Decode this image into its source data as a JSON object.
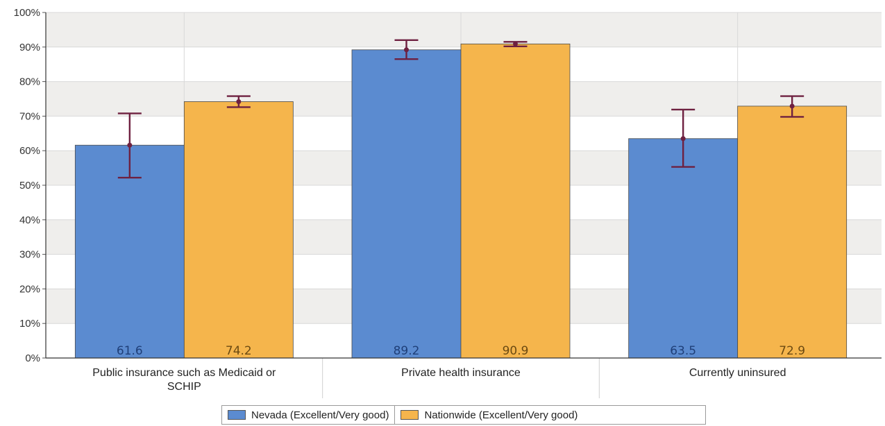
{
  "chart_data": {
    "type": "bar",
    "title": "",
    "xlabel": "",
    "ylabel": "",
    "ylim": [
      0,
      100
    ],
    "yticks": [
      "0%",
      "10%",
      "20%",
      "30%",
      "40%",
      "50%",
      "60%",
      "70%",
      "80%",
      "90%",
      "100%"
    ],
    "categories": [
      [
        "Public insurance such as Medicaid or",
        "SCHIP"
      ],
      [
        "Private health insurance"
      ],
      [
        "Currently uninsured"
      ]
    ],
    "series": [
      {
        "name": "Nevada (Excellent/Very good)",
        "color": "#5b8bd0",
        "label_color": "#1f3f78",
        "values": [
          61.6,
          89.2,
          63.5
        ],
        "error_low": [
          52.2,
          86.5,
          55.3
        ],
        "error_high": [
          70.8,
          92.0,
          71.9
        ]
      },
      {
        "name": "Nationwide (Excellent/Very good)",
        "color": "#f5b54c",
        "label_color": "#6b4a12",
        "values": [
          74.2,
          90.9,
          72.9
        ],
        "error_low": [
          72.6,
          90.2,
          69.8
        ],
        "error_high": [
          75.8,
          91.5,
          75.8
        ]
      }
    ],
    "error_bar_color": "#6e2040",
    "grid": true,
    "legend_position": "bottom"
  }
}
